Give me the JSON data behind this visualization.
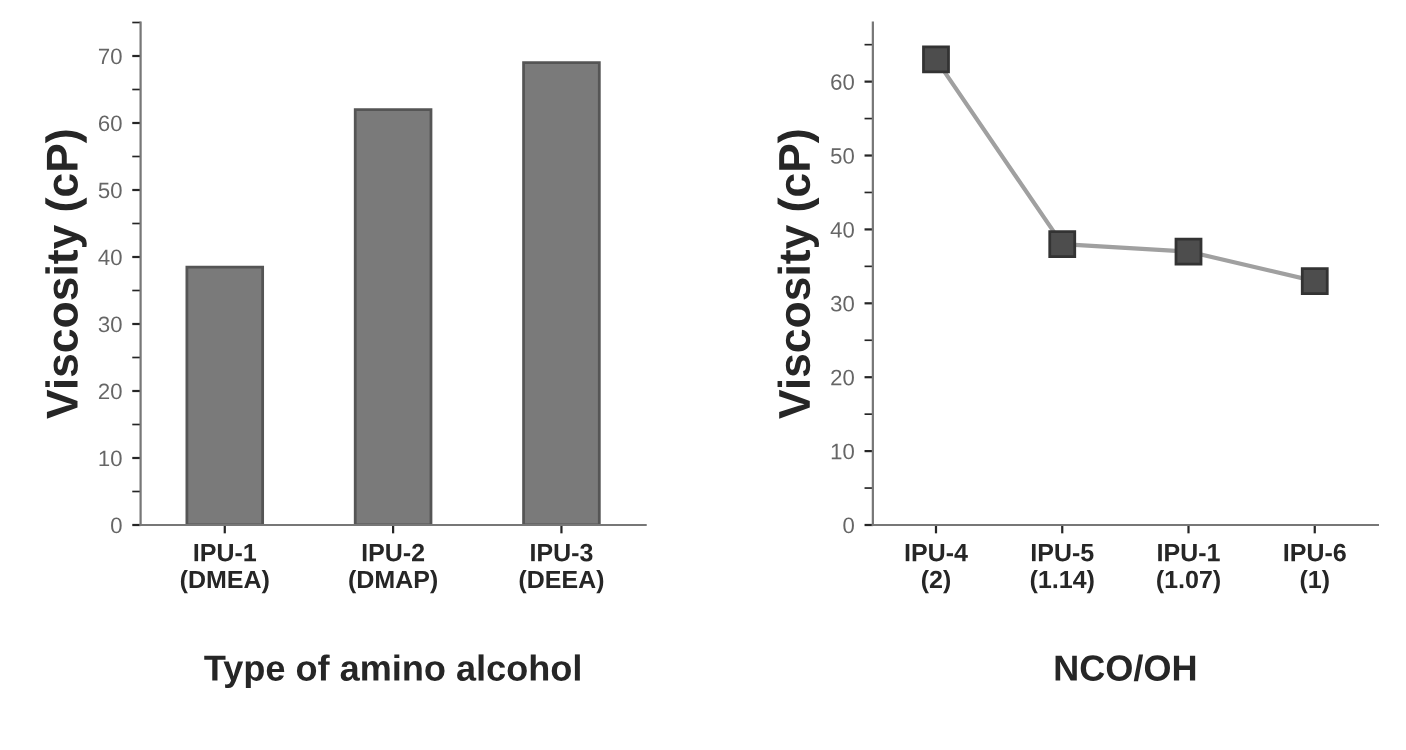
{
  "chart_data": [
    {
      "type": "bar",
      "xlabel": "Type of amino alcohol",
      "ylabel": "Viscosity (cP)",
      "categories": [
        "IPU-1\n(DMEA)",
        "IPU-2\n(DMAP)",
        "IPU-3\n(DEEA)"
      ],
      "values": [
        38.5,
        62,
        69
      ],
      "color": "#7a7a7a",
      "ylim": [
        0,
        75
      ],
      "yticks": [
        0,
        10,
        20,
        30,
        40,
        50,
        60,
        70
      ],
      "grid": false
    },
    {
      "type": "line",
      "xlabel": "NCO/OH",
      "ylabel": "Viscosity (cP)",
      "categories": [
        "IPU-4\n(2)",
        "IPU-5\n(1.14)",
        "IPU-1\n(1.07)",
        "IPU-6\n(1)"
      ],
      "values": [
        63,
        38,
        37,
        33
      ],
      "color": "#4d4d4d",
      "marker": "square",
      "line_style": "solid",
      "ylim": [
        0,
        68
      ],
      "yticks": [
        0,
        10,
        20,
        30,
        40,
        50,
        60
      ],
      "grid": false
    }
  ]
}
